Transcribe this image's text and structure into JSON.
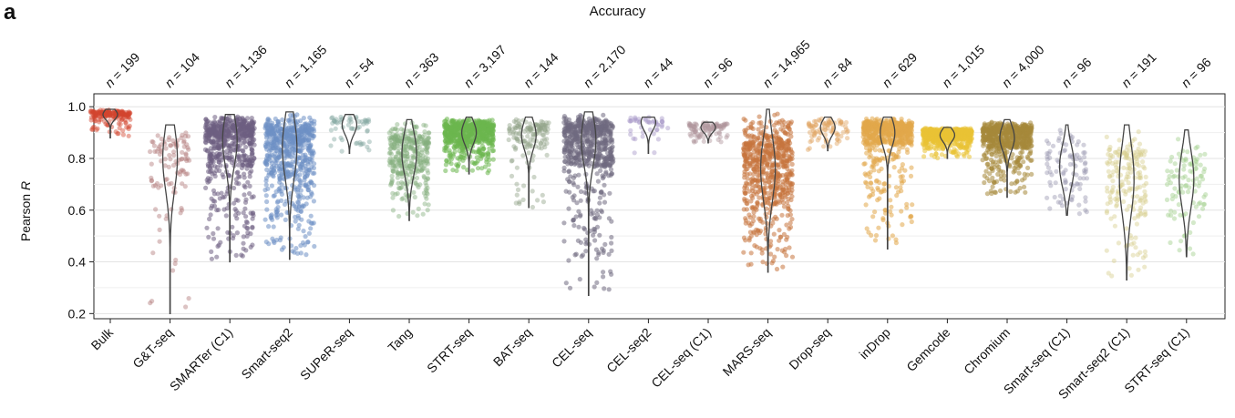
{
  "panel_letter": "a",
  "chart_data": {
    "type": "scatter",
    "title": "Accuracy",
    "xlabel": "",
    "ylabel": "Pearson",
    "ylabel_italic": "R",
    "ylim": [
      0.18,
      1.05
    ],
    "yticks": [
      0.2,
      0.4,
      0.6,
      0.8,
      1.0
    ],
    "yticklabels": [
      "0.2",
      "0.4",
      "0.6",
      "0.8",
      "1.0"
    ],
    "grid": true,
    "legend": "none",
    "categories": [
      {
        "name": "Bulk",
        "n": "n = 199",
        "color": "#d2452f",
        "median": 0.97,
        "q1": 0.96,
        "q3": 0.98,
        "min": 0.88,
        "max": 0.99
      },
      {
        "name": "G&T-seq",
        "n": "n = 104",
        "color": "#b27b79",
        "median": 0.8,
        "q1": 0.68,
        "q3": 0.88,
        "min": 0.2,
        "max": 0.93
      },
      {
        "name": "SMARTer (C1)",
        "n": "n = 1,136",
        "color": "#6e5e82",
        "median": 0.87,
        "q1": 0.77,
        "q3": 0.93,
        "min": 0.4,
        "max": 0.97
      },
      {
        "name": "Smart-seq2",
        "n": "n = 1,165",
        "color": "#6d8fc4",
        "median": 0.84,
        "q1": 0.73,
        "q3": 0.92,
        "min": 0.41,
        "max": 0.98
      },
      {
        "name": "SUPeR-seq",
        "n": "n = 54",
        "color": "#86a8a2",
        "median": 0.93,
        "q1": 0.9,
        "q3": 0.96,
        "min": 0.82,
        "max": 0.97
      },
      {
        "name": "Tang",
        "n": "n = 363",
        "color": "#86b07e",
        "median": 0.82,
        "q1": 0.74,
        "q3": 0.88,
        "min": 0.56,
        "max": 0.95
      },
      {
        "name": "STRT-seq",
        "n": "n = 3,197",
        "color": "#6bb64f",
        "median": 0.9,
        "q1": 0.86,
        "q3": 0.93,
        "min": 0.74,
        "max": 0.96
      },
      {
        "name": "BAT-seq",
        "n": "n = 144",
        "color": "#93a48a",
        "median": 0.89,
        "q1": 0.84,
        "q3": 0.93,
        "min": 0.61,
        "max": 0.96
      },
      {
        "name": "CEL-seq",
        "n": "n = 2,170",
        "color": "#6f6980",
        "median": 0.87,
        "q1": 0.77,
        "q3": 0.93,
        "min": 0.27,
        "max": 0.98
      },
      {
        "name": "CEL-seq2",
        "n": "n = 44",
        "color": "#a796c8",
        "median": 0.94,
        "q1": 0.91,
        "q3": 0.96,
        "min": 0.82,
        "max": 0.96
      },
      {
        "name": "CEL-seq (C1)",
        "n": "n = 96",
        "color": "#b0959c",
        "median": 0.92,
        "q1": 0.9,
        "q3": 0.93,
        "min": 0.86,
        "max": 0.94
      },
      {
        "name": "MARS-seq",
        "n": "n = 14,965",
        "color": "#c7743e",
        "median": 0.76,
        "q1": 0.66,
        "q3": 0.86,
        "min": 0.36,
        "max": 0.99
      },
      {
        "name": "Drop-seq",
        "n": "n = 84",
        "color": "#e0a462",
        "median": 0.92,
        "q1": 0.89,
        "q3": 0.94,
        "min": 0.83,
        "max": 0.96
      },
      {
        "name": "inDrop",
        "n": "n = 629",
        "color": "#e2a84b",
        "median": 0.9,
        "q1": 0.85,
        "q3": 0.94,
        "min": 0.45,
        "max": 0.96
      },
      {
        "name": "Gemcode",
        "n": "n = 1,015",
        "color": "#eac235",
        "median": 0.89,
        "q1": 0.87,
        "q3": 0.91,
        "min": 0.8,
        "max": 0.92
      },
      {
        "name": "Chromium",
        "n": "n = 4,000",
        "color": "#a5893a",
        "median": 0.88,
        "q1": 0.84,
        "q3": 0.92,
        "min": 0.65,
        "max": 0.95
      },
      {
        "name": "Smart-seq (C1)",
        "n": "n = 96",
        "color": "#9b98b1",
        "median": 0.77,
        "q1": 0.7,
        "q3": 0.83,
        "min": 0.58,
        "max": 0.93
      },
      {
        "name": "Smart-seq2 (C1)",
        "n": "n = 191",
        "color": "#d8cf8f",
        "median": 0.72,
        "q1": 0.6,
        "q3": 0.82,
        "min": 0.33,
        "max": 0.93
      },
      {
        "name": "STRT-seq (C1)",
        "n": "n = 96",
        "color": "#9fcf8a",
        "median": 0.72,
        "q1": 0.62,
        "q3": 0.8,
        "min": 0.42,
        "max": 0.91
      }
    ]
  }
}
